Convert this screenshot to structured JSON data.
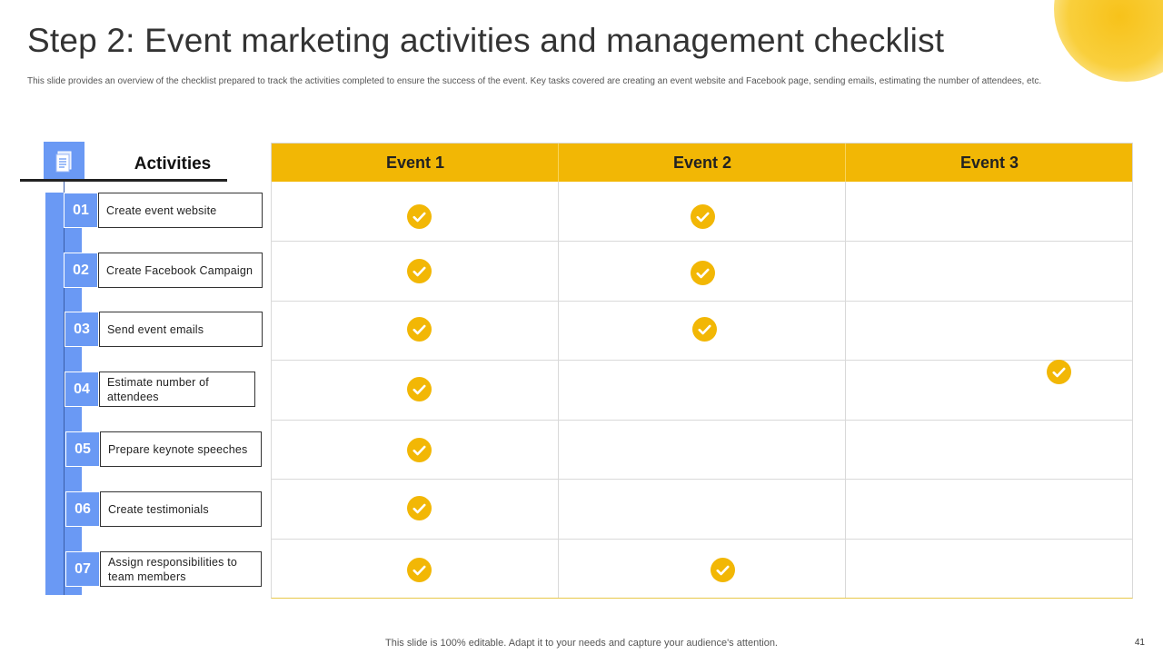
{
  "header": {
    "title": "Step 2: Event marketing activities and management checklist",
    "subtitle": "This slide provides an overview of the checklist prepared to track the activities completed to ensure the success of the event. Key tasks covered are creating an event website and Facebook page, sending emails, estimating the number of attendees, etc."
  },
  "activities": {
    "heading": "Activities",
    "icon": "document-icon",
    "items": [
      {
        "num": "01",
        "label": "Create event website"
      },
      {
        "num": "02",
        "label": "Create Facebook Campaign"
      },
      {
        "num": "03",
        "label": "Send event emails"
      },
      {
        "num": "04",
        "label": "Estimate number of attendees"
      },
      {
        "num": "05",
        "label": "Prepare keynote speeches"
      },
      {
        "num": "06",
        "label": "Create testimonials"
      },
      {
        "num": "07",
        "label": "Assign responsibilities to team members"
      }
    ]
  },
  "table": {
    "columns": [
      "Event 1",
      "Event 2",
      "Event 3"
    ],
    "checks": [
      [
        true,
        true,
        false
      ],
      [
        true,
        true,
        false
      ],
      [
        true,
        true,
        false
      ],
      [
        true,
        false,
        true
      ],
      [
        true,
        false,
        false
      ],
      [
        true,
        false,
        false
      ],
      [
        true,
        true,
        false
      ]
    ]
  },
  "colors": {
    "accent_yellow": "#f2b705",
    "accent_blue": "#6a99f4"
  },
  "footer": {
    "note": "This slide is 100% editable. Adapt it to your needs and capture your audience's attention.",
    "page_number": "41"
  }
}
